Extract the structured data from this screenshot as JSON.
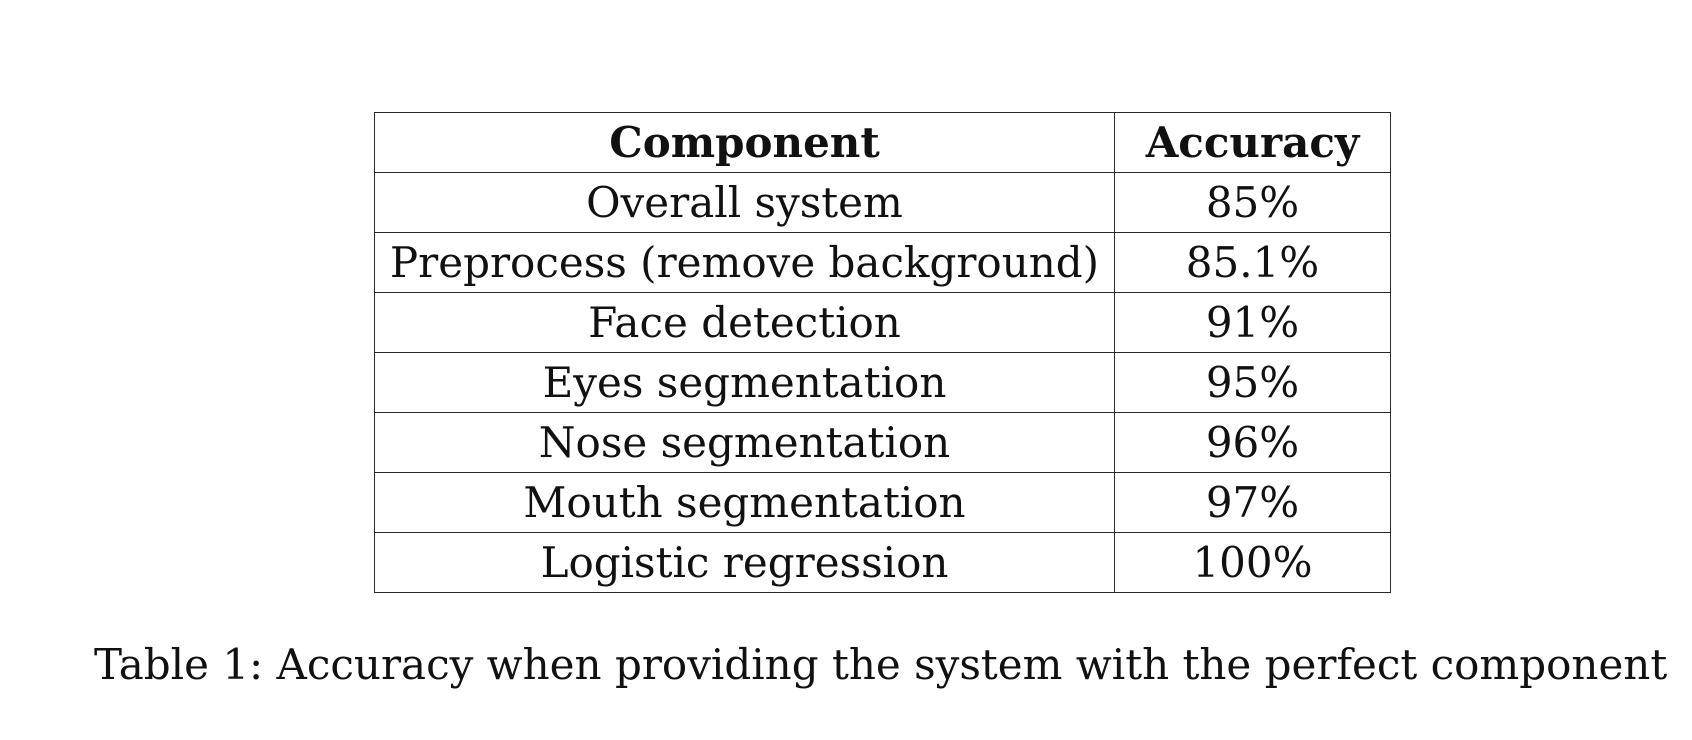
{
  "table": {
    "headers": [
      "Component",
      "Accuracy"
    ],
    "rows": [
      [
        "Overall system",
        "85%"
      ],
      [
        "Preprocess (remove background)",
        "85.1%"
      ],
      [
        "Face detection",
        "91%"
      ],
      [
        "Eyes segmentation",
        "95%"
      ],
      [
        "Nose segmentation",
        "96%"
      ],
      [
        "Mouth segmentation",
        "97%"
      ],
      [
        "Logistic regression",
        "100%"
      ]
    ]
  },
  "caption": "Table 1: Accuracy when providing the system with the perfect component"
}
